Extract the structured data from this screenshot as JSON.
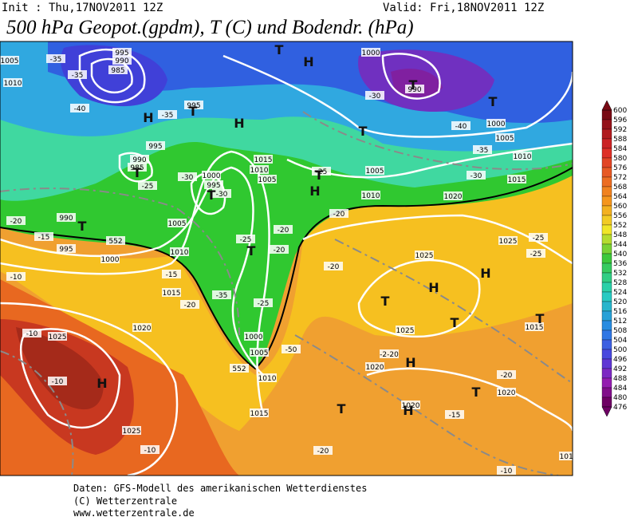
{
  "header": {
    "init": "Init : Thu,17NOV2011 12Z",
    "valid": "Valid: Fri,18NOV2011 12Z",
    "title": "500 hPa Geopot.(gpdm), T (C) und Bodendr. (hPa)"
  },
  "colorbar": {
    "labels": [
      600,
      596,
      592,
      588,
      584,
      580,
      576,
      572,
      568,
      564,
      560,
      556,
      552,
      548,
      544,
      540,
      536,
      532,
      528,
      524,
      520,
      516,
      512,
      508,
      504,
      500,
      496,
      492,
      488,
      484,
      480,
      476
    ]
  },
  "map": {
    "labels": [
      "995",
      "990",
      "985",
      "1005",
      "1010",
      "-35",
      "-35",
      "-40",
      "995",
      "995",
      "990",
      "985",
      "-25",
      "-35",
      "-30",
      "1000",
      "995",
      "-30",
      "1015",
      "1010",
      "1005",
      "-25",
      "1010",
      "1005",
      "1000",
      "990",
      "-30",
      "-40",
      "1000",
      "1005",
      "-35",
      "1010",
      "1015",
      "-30",
      "990",
      "995",
      "1000",
      "1005",
      "1010",
      "-20",
      "-10",
      "1015",
      "-15",
      "-20",
      "-35",
      "-25",
      "1000",
      "1005",
      "1010",
      "1015",
      "1020",
      "1025",
      "-10",
      "-10",
      "1025",
      "-10",
      "552",
      "552",
      "-50",
      "1020",
      "1025",
      "1025",
      "1020",
      "1020",
      "-15",
      "1020",
      "-20",
      "-20",
      "-10",
      "1015",
      "1025",
      "-25",
      "-25",
      "-2-20",
      "1015",
      "-20",
      "-20",
      "-20",
      "-20",
      "-15",
      "-25"
    ],
    "markers": [
      "H",
      "T",
      "H",
      "H",
      "T",
      "T",
      "T",
      "T",
      "T",
      "H",
      "T",
      "T",
      "T",
      "T",
      "H",
      "T",
      "H",
      "H",
      "T",
      "H",
      "T",
      "T",
      "T",
      "H"
    ]
  },
  "footer": {
    "source": "Daten: GFS-Modell des amerikanischen Wetterdienstes",
    "copyright": "(C) Wetterzentrale",
    "url": "www.wetterzentrale.de"
  }
}
